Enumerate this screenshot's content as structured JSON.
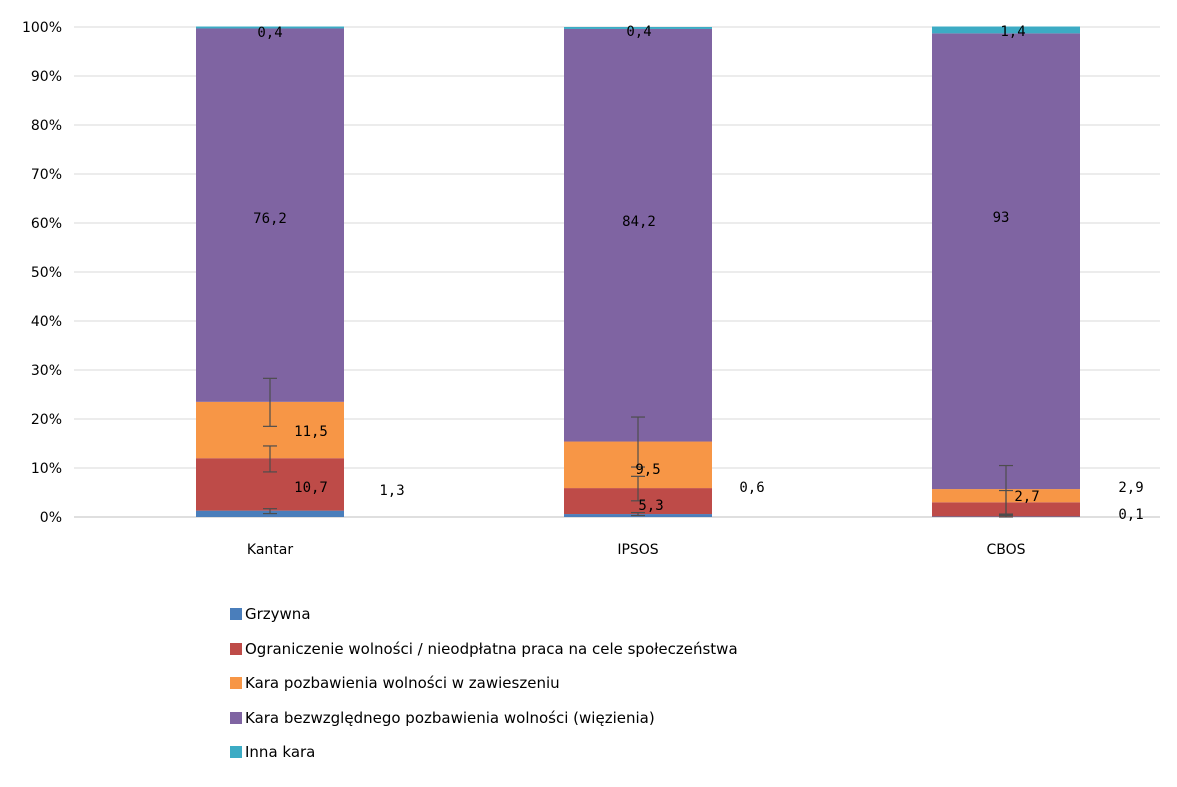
{
  "chart_data": {
    "type": "bar",
    "stacked": true,
    "categories": [
      "Kantar",
      "IPSOS",
      "CBOS"
    ],
    "ylim": [
      0,
      100
    ],
    "yticks": [
      "0%",
      "10%",
      "20%",
      "30%",
      "40%",
      "50%",
      "60%",
      "70%",
      "80%",
      "90%",
      "100%"
    ],
    "grid": true,
    "legend_position": "bottom",
    "series": [
      {
        "name": "Grzywna",
        "color": "#4a7ebb",
        "values": [
          1.3,
          0.6,
          0.1
        ],
        "labels": [
          "1,3",
          "0,6",
          "0,1"
        ]
      },
      {
        "name": "Ograniczenie wolności / nieodpłatna praca na cele społeczeństwa",
        "color": "#be4b48",
        "values": [
          10.7,
          5.3,
          2.9
        ],
        "labels": [
          "10,7",
          "5,3",
          "2,9"
        ]
      },
      {
        "name": "Kara pozbawienia wolności w zawieszeniu",
        "color": "#f79646",
        "values": [
          11.5,
          9.5,
          2.7
        ],
        "labels": [
          "11,5",
          "9,5",
          "2,7"
        ]
      },
      {
        "name": "Kara bezwzględnego pozbawienia wolności (więzienia)",
        "color": "#7f64a2",
        "values": [
          76.2,
          84.2,
          93
        ],
        "labels": [
          "76,2",
          "84,2",
          "93"
        ]
      },
      {
        "name": "Inna kara",
        "color": "#3cabc4",
        "values": [
          0.4,
          0.4,
          1.4
        ],
        "labels": [
          "0,4",
          "0,4",
          "1,4"
        ]
      }
    ],
    "error_bars": {
      "Grzywna": [
        [
          0.7,
          1.7
        ],
        [
          0.3,
          0.9
        ],
        [
          0.0,
          0.3
        ]
      ],
      "Ograniczenie wolności / nieodpłatna praca na cele społeczeństwa": [
        [
          9.2,
          14.5
        ],
        [
          3.3,
          8.3
        ],
        [
          0.4,
          5.4
        ]
      ],
      "Kara pozbawienia wolności w zawieszeniu": [
        [
          18.5,
          28.3
        ],
        [
          10.2,
          20.4
        ],
        [
          0.6,
          10.5
        ]
      ]
    }
  }
}
